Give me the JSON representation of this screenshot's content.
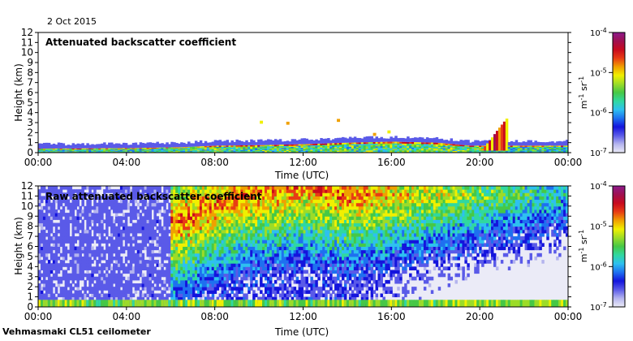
{
  "header": {
    "date": "2 Oct 2015"
  },
  "footer": {
    "instrument": "Vehmasmaki CL51 ceilometer"
  },
  "colors": {
    "scale": [
      "#ebebf7",
      "#b4b4ee",
      "#5a5ae8",
      "#1414dd",
      "#1e70f0",
      "#2ec0f0",
      "#30d8a0",
      "#46c846",
      "#9cdc28",
      "#f0f000",
      "#f0a000",
      "#e83c14",
      "#c80a1e",
      "#a01050",
      "#8c1a8c"
    ],
    "panel_border": "#000000"
  },
  "chart_data": [
    {
      "type": "heatmap",
      "title": "Attenuated backscatter coefficient",
      "xlabel": "Time (UTC)",
      "ylabel": "Height (km)",
      "x_ticks": [
        "00:00",
        "04:00",
        "08:00",
        "12:00",
        "16:00",
        "20:00",
        "00:00"
      ],
      "x_range_hours": [
        0,
        24
      ],
      "y_ticks": [
        0,
        1,
        2,
        3,
        4,
        5,
        6,
        7,
        8,
        9,
        10,
        11,
        12
      ],
      "ylim": [
        0,
        12
      ],
      "colorbar": {
        "scale": "log",
        "range": [
          1e-07,
          0.0001
        ],
        "ticks": [
          "10",
          "10",
          "10",
          "10"
        ],
        "tick_exponents": [
          "-7",
          "-6",
          "-5",
          "-4"
        ],
        "label": "m",
        "label_sup1": "-1",
        "label_mid": " sr",
        "label_sup2": "-1"
      },
      "features": [
        {
          "name": "boundary layer top",
          "points": [
            [
              0,
              0.4
            ],
            [
              4,
              0.45
            ],
            [
              6.5,
              0.55
            ],
            [
              8,
              0.7
            ],
            [
              10,
              0.75
            ],
            [
              12,
              0.85
            ],
            [
              14,
              1.0
            ],
            [
              16,
              1.1
            ],
            [
              18,
              1.0
            ],
            [
              19.5,
              0.7
            ],
            [
              21,
              0.7
            ],
            [
              24,
              0.7
            ]
          ]
        },
        {
          "name": "rising plume",
          "points": [
            [
              20.0,
              0.2
            ],
            [
              20.4,
              1.2
            ],
            [
              20.8,
              2.4
            ],
            [
              21.2,
              3.5
            ]
          ]
        }
      ]
    },
    {
      "type": "heatmap",
      "title": "Raw attenuated backscatter coefficient",
      "xlabel": "Time (UTC)",
      "ylabel": "Height (km)",
      "x_ticks": [
        "00:00",
        "04:00",
        "08:00",
        "12:00",
        "16:00",
        "20:00",
        "00:00"
      ],
      "x_range_hours": [
        0,
        24
      ],
      "y_ticks": [
        0,
        1,
        2,
        3,
        4,
        5,
        6,
        7,
        8,
        9,
        10,
        11,
        12
      ],
      "ylim": [
        0,
        12
      ],
      "colorbar": {
        "scale": "log",
        "range": [
          1e-07,
          0.0001
        ],
        "ticks": [
          "10",
          "10",
          "10",
          "10"
        ],
        "tick_exponents": [
          "-7",
          "-6",
          "-5",
          "-4"
        ],
        "label": "m",
        "label_sup1": "-1",
        "label_mid": " sr",
        "label_sup2": "-1"
      },
      "features": [
        {
          "name": "noise peak (daytime)",
          "points": [
            [
              6,
              8
            ],
            [
              9,
              11
            ],
            [
              12,
              12
            ],
            [
              14,
              11
            ]
          ]
        }
      ]
    }
  ]
}
